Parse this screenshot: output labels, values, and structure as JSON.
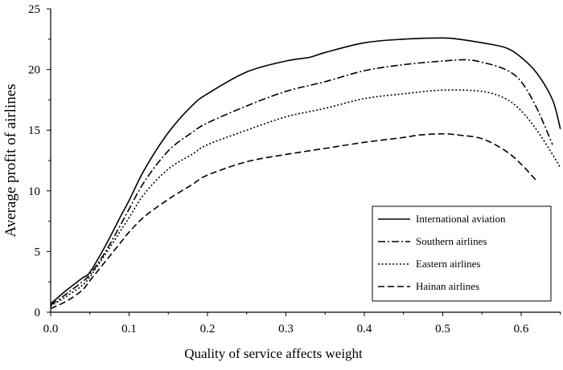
{
  "chart_data": {
    "type": "line",
    "title": "",
    "xlabel": "Quality of service affects weight",
    "ylabel": "Average profit of airlines",
    "xlim": [
      0,
      0.65
    ],
    "ylim": [
      0,
      25
    ],
    "xticks": [
      0.0,
      0.1,
      0.2,
      0.3,
      0.4,
      0.5,
      0.6
    ],
    "xtick_labels": [
      "0.0",
      "0.1",
      "0.2",
      "0.3",
      "0.4",
      "0.5",
      "0.6"
    ],
    "yticks": [
      0,
      5,
      10,
      15,
      20,
      25
    ],
    "ytick_labels": [
      "0",
      "5",
      "10",
      "15",
      "20",
      "25"
    ],
    "grid": false,
    "legend_position": "bottom-right",
    "series": [
      {
        "name": "International aviation",
        "dash": "solid",
        "x": [
          0.0,
          0.02,
          0.04,
          0.05,
          0.07,
          0.09,
          0.1,
          0.12,
          0.15,
          0.18,
          0.2,
          0.25,
          0.3,
          0.33,
          0.35,
          0.4,
          0.45,
          0.5,
          0.52,
          0.55,
          0.58,
          0.6,
          0.62,
          0.64,
          0.65
        ],
        "y": [
          0.7,
          1.8,
          2.8,
          3.3,
          5.5,
          8.0,
          9.2,
          11.8,
          14.8,
          17.0,
          18.0,
          19.8,
          20.7,
          21.0,
          21.4,
          22.2,
          22.5,
          22.6,
          22.5,
          22.2,
          21.8,
          21.0,
          19.7,
          17.5,
          15.1
        ]
      },
      {
        "name": "Southern airlines",
        "dash": "dashdot",
        "x": [
          0.0,
          0.02,
          0.04,
          0.05,
          0.07,
          0.09,
          0.1,
          0.12,
          0.15,
          0.18,
          0.2,
          0.25,
          0.3,
          0.35,
          0.4,
          0.45,
          0.5,
          0.53,
          0.55,
          0.58,
          0.6,
          0.62,
          0.64
        ],
        "y": [
          0.6,
          1.5,
          2.5,
          3.1,
          5.0,
          7.3,
          8.5,
          10.8,
          13.3,
          14.8,
          15.6,
          17.0,
          18.2,
          19.0,
          19.9,
          20.4,
          20.7,
          20.8,
          20.6,
          20.0,
          19.0,
          16.8,
          13.8
        ]
      },
      {
        "name": "Eastern airlines",
        "dash": "dotted",
        "x": [
          0.0,
          0.02,
          0.04,
          0.05,
          0.07,
          0.09,
          0.1,
          0.12,
          0.15,
          0.18,
          0.2,
          0.25,
          0.3,
          0.35,
          0.4,
          0.45,
          0.5,
          0.55,
          0.58,
          0.6,
          0.62,
          0.64,
          0.65
        ],
        "y": [
          0.5,
          1.3,
          2.2,
          2.9,
          4.8,
          6.8,
          7.8,
          9.8,
          11.8,
          13.0,
          13.8,
          15.0,
          16.1,
          16.8,
          17.6,
          18.0,
          18.3,
          18.2,
          17.6,
          16.6,
          15.0,
          13.0,
          11.9
        ]
      },
      {
        "name": "Hainan airlines",
        "dash": "dashed",
        "x": [
          0.0,
          0.02,
          0.04,
          0.05,
          0.07,
          0.09,
          0.1,
          0.12,
          0.15,
          0.18,
          0.2,
          0.25,
          0.3,
          0.35,
          0.4,
          0.45,
          0.47,
          0.5,
          0.52,
          0.55,
          0.58,
          0.6,
          0.62
        ],
        "y": [
          0.3,
          0.9,
          1.8,
          2.6,
          4.2,
          5.8,
          6.6,
          7.9,
          9.3,
          10.5,
          11.3,
          12.4,
          13.0,
          13.5,
          14.0,
          14.4,
          14.6,
          14.7,
          14.6,
          14.3,
          13.3,
          12.2,
          10.8
        ]
      }
    ]
  }
}
